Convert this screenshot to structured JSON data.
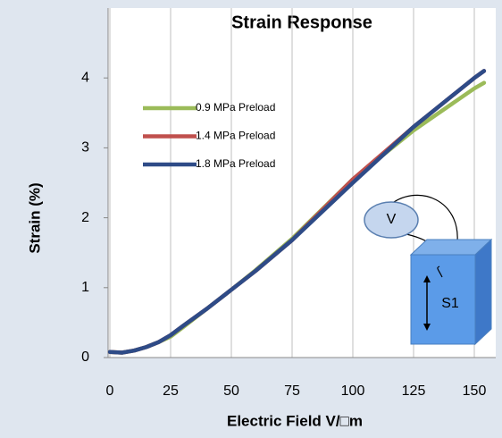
{
  "chart_data": {
    "type": "line",
    "title": "Strain Response",
    "x_label": "Electric Field V/□m",
    "y_label": "Strain (%)",
    "xlim": [
      0,
      160
    ],
    "xticks": [
      0,
      25,
      50,
      75,
      100,
      125,
      150
    ],
    "ylim": [
      0,
      5
    ],
    "yticks": [
      0,
      1,
      2,
      3,
      4
    ],
    "grid": true,
    "legend": "upper left",
    "series": [
      {
        "name": "0.9 MPa Preload",
        "color": "#9bbb59",
        "x": [
          0,
          5,
          10,
          15,
          20,
          25,
          30,
          40,
          50,
          60,
          75,
          100,
          125,
          150,
          154
        ],
        "values": [
          0.08,
          0.07,
          0.1,
          0.15,
          0.22,
          0.3,
          0.43,
          0.7,
          0.97,
          1.25,
          1.7,
          2.55,
          3.25,
          3.85,
          3.93
        ]
      },
      {
        "name": "1.4 MPa Preload",
        "color": "#c0504d",
        "x": [
          0,
          5,
          10,
          15,
          20,
          25,
          30,
          40,
          50,
          60,
          75,
          100,
          115,
          125,
          150,
          154
        ],
        "values": [
          0.08,
          0.07,
          0.1,
          0.15,
          0.22,
          0.32,
          0.45,
          0.7,
          0.97,
          1.24,
          1.68,
          2.55,
          3.0,
          3.3,
          4.0,
          4.1
        ]
      },
      {
        "name": "1.8 MPa Preload",
        "color": "#2e4b87",
        "x": [
          0,
          5,
          10,
          15,
          20,
          25,
          30,
          40,
          50,
          60,
          75,
          100,
          125,
          150,
          154
        ],
        "values": [
          0.08,
          0.07,
          0.1,
          0.15,
          0.22,
          0.32,
          0.45,
          0.7,
          0.97,
          1.24,
          1.68,
          2.5,
          3.3,
          4.0,
          4.1
        ]
      }
    ],
    "annotations": [
      "V",
      "S1"
    ]
  }
}
